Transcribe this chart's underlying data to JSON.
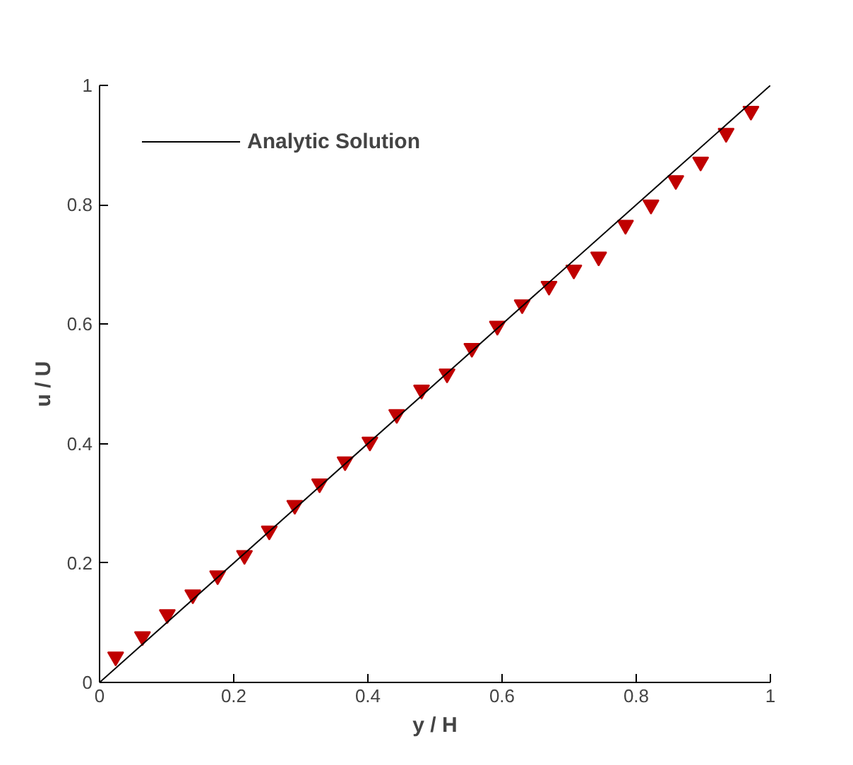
{
  "chart_data": {
    "type": "scatter",
    "xlabel": "y / H",
    "ylabel": "u / U",
    "xlim": [
      0,
      1
    ],
    "ylim": [
      0,
      1
    ],
    "xticks": [
      0,
      {
        "value": 0.2,
        "label": "0.2"
      },
      {
        "value": 0.4,
        "label": "0.4"
      },
      {
        "value": 0.6,
        "label": "0.6"
      },
      {
        "value": 0.8,
        "label": "0.8"
      },
      1
    ],
    "yticks": [
      0,
      {
        "value": 0.2,
        "label": "0.2"
      },
      {
        "value": 0.4,
        "label": "0.4"
      },
      {
        "value": 0.6,
        "label": "0.6"
      },
      {
        "value": 0.8,
        "label": "0.8"
      },
      1
    ],
    "grid": false,
    "legend": "top left",
    "series": [
      {
        "marker": "triangle",
        "color": "#c00000",
        "x": [
          0.024,
          0.064,
          0.101,
          0.139,
          0.176,
          0.216,
          0.253,
          0.291,
          0.328,
          0.366,
          0.403,
          0.443,
          0.48,
          0.518,
          0.555,
          0.593,
          0.63,
          0.67,
          0.707,
          0.744,
          0.784,
          0.822,
          0.859,
          0.896,
          0.934,
          0.971
        ],
        "values": [
          0.043,
          0.077,
          0.114,
          0.147,
          0.179,
          0.213,
          0.254,
          0.297,
          0.333,
          0.37,
          0.403,
          0.449,
          0.49,
          0.517,
          0.56,
          0.597,
          0.633,
          0.664,
          0.691,
          0.713,
          0.766,
          0.8,
          0.841,
          0.872,
          0.92,
          0.957
        ]
      },
      {
        "type": "line",
        "name": "Analytic Solution",
        "color": "#000000",
        "line_style": "solid",
        "x": [
          0,
          1
        ],
        "values": [
          0,
          1
        ]
      }
    ]
  }
}
